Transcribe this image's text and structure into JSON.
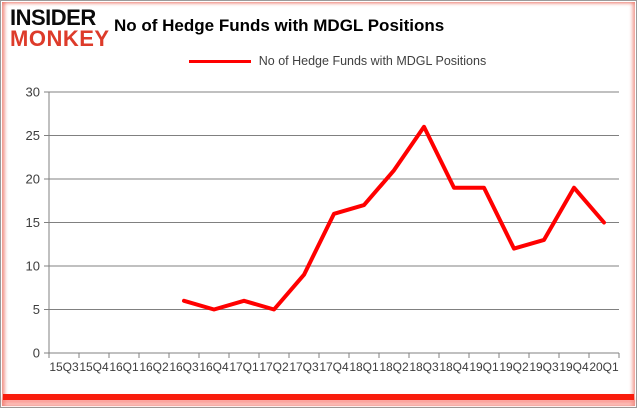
{
  "brand": {
    "line1": "INSIDER",
    "line2": "MONKEY",
    "line1_color": "#0b0b0b",
    "line2_color": "#dd3b2a"
  },
  "header": {
    "title": "No of Hedge Funds with MDGL Positions"
  },
  "legend": {
    "label": "No of Hedge Funds with MDGL Positions",
    "marker_color": "#ff0000"
  },
  "frame": {
    "accent_color": "#f91c0c"
  },
  "chart_data": {
    "type": "line",
    "title": "No of Hedge Funds with MDGL Positions",
    "categories": [
      "15Q3",
      "15Q4",
      "16Q1",
      "16Q2",
      "16Q3",
      "16Q4",
      "17Q1",
      "17Q2",
      "17Q3",
      "17Q4",
      "18Q1",
      "18Q2",
      "18Q3",
      "18Q4",
      "19Q1",
      "19Q2",
      "19Q3",
      "19Q4",
      "20Q1"
    ],
    "series": [
      {
        "name": "No of Hedge Funds with MDGL Positions",
        "color": "#ff0000",
        "values": [
          null,
          null,
          null,
          null,
          6,
          5,
          6,
          5,
          9,
          16,
          17,
          21,
          26,
          19,
          19,
          12,
          13,
          19,
          15
        ]
      }
    ],
    "ylim": [
      0,
      30
    ],
    "yticks": [
      0,
      5,
      10,
      15,
      20,
      25,
      30
    ],
    "grid": "horizontal",
    "gridline_color": "#808080",
    "axis_color": "#808080",
    "label_color": "#3d3d3d",
    "legend_position": "top"
  }
}
